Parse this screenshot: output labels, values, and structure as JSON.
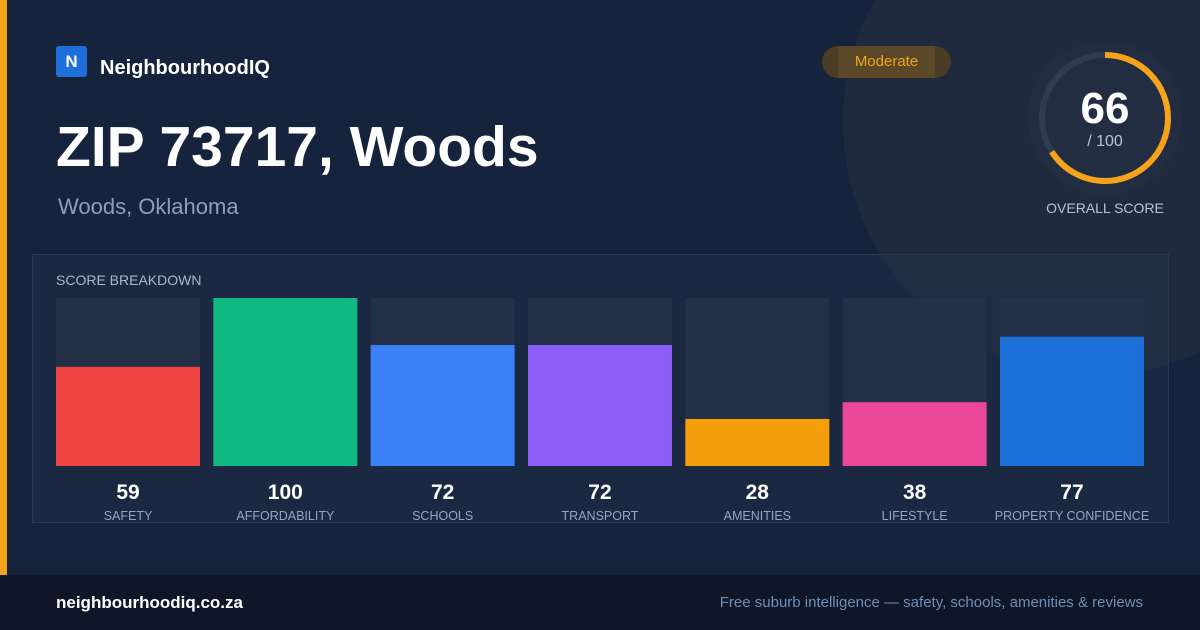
{
  "brand": {
    "logo_letter": "N",
    "name": "NeighbourhoodIQ"
  },
  "badge": {
    "label": "Moderate",
    "color": "#f5a31a"
  },
  "header": {
    "title": "ZIP 73717, Woods",
    "subtitle": "Woods, Oklahoma"
  },
  "overall": {
    "score": "66",
    "max_label": "/ 100",
    "label": "OVERALL SCORE",
    "value": 66,
    "max": 100,
    "color": "#f5a31a"
  },
  "breakdown": {
    "title": "SCORE BREAKDOWN"
  },
  "chart_data": {
    "type": "bar",
    "title": "SCORE BREAKDOWN",
    "categories": [
      "SAFETY",
      "AFFORDABILITY",
      "SCHOOLS",
      "TRANSPORT",
      "AMENITIES",
      "LIFESTYLE",
      "PROPERTY CONFIDENCE"
    ],
    "values": [
      59,
      100,
      72,
      72,
      28,
      38,
      77
    ],
    "colors": [
      "#ef4444",
      "#10b981",
      "#3b82f6",
      "#8b5cf6",
      "#f59e0b",
      "#ec4899",
      "#1d6fd8"
    ],
    "ylim": [
      0,
      100
    ],
    "value_labels": true,
    "grid": false
  },
  "footer": {
    "url": "neighbourhoodiq.co.za",
    "tagline": "Free suburb intelligence — safety, schools, amenities & reviews"
  }
}
